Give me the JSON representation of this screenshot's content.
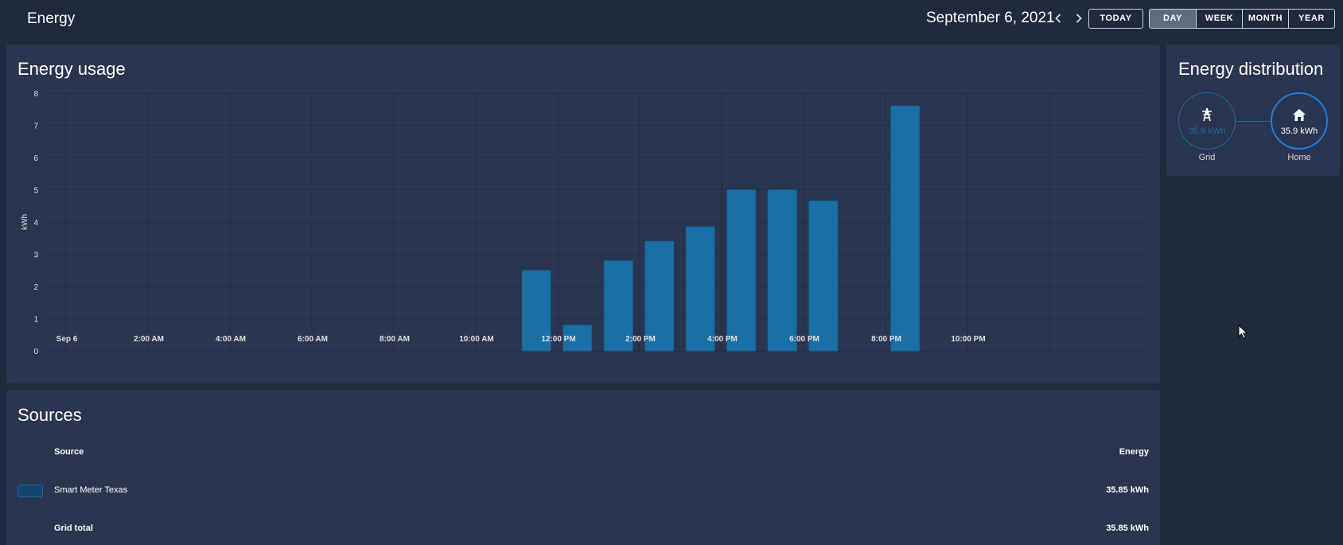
{
  "header": {
    "title": "Energy",
    "date": "September 6, 2021",
    "today_label": "TODAY",
    "periods": [
      {
        "label": "DAY",
        "active": true
      },
      {
        "label": "WEEK",
        "active": false
      },
      {
        "label": "MONTH",
        "active": false
      },
      {
        "label": "YEAR",
        "active": false
      }
    ],
    "prev_icon": "chevron-left-icon",
    "next_icon": "chevron-right-icon"
  },
  "usage": {
    "title": "Energy usage"
  },
  "chart_data": {
    "type": "bar",
    "title": "Energy usage",
    "xlabel": "",
    "ylabel": "kWh",
    "ylim": [
      0,
      8
    ],
    "yticks": [
      0,
      1,
      2,
      3,
      4,
      5,
      6,
      7,
      8
    ],
    "xtick_labels": [
      "Sep 6",
      "2:00 AM",
      "4:00 AM",
      "6:00 AM",
      "8:00 AM",
      "10:00 AM",
      "12:00 PM",
      "2:00 PM",
      "4:00 PM",
      "6:00 PM",
      "8:00 PM",
      "10:00 PM"
    ],
    "hours": [
      11,
      12,
      13,
      14,
      15,
      16,
      17,
      18,
      20
    ],
    "values": [
      2.5,
      0.8,
      2.8,
      3.4,
      3.85,
      5.0,
      5.0,
      4.65,
      7.6
    ],
    "series_color": "#1a6fa6",
    "grid": true
  },
  "distribution": {
    "title": "Energy distribution",
    "grid": {
      "value": "35.9 kWh",
      "label": "Grid",
      "icon": "transmission-tower-icon"
    },
    "home": {
      "value": "35.9 kWh",
      "label": "Home",
      "icon": "home-icon"
    }
  },
  "sources": {
    "title": "Sources",
    "col_source": "Source",
    "col_energy": "Energy",
    "rows": [
      {
        "name": "Smart Meter Texas",
        "value": "35.85 kWh",
        "color": "#15476e"
      }
    ],
    "total": {
      "name": "Grid total",
      "value": "35.85 kWh"
    }
  },
  "colors": {
    "background": "#1f2a3d",
    "card": "#2a3550",
    "accent": "#1a6fa6"
  }
}
